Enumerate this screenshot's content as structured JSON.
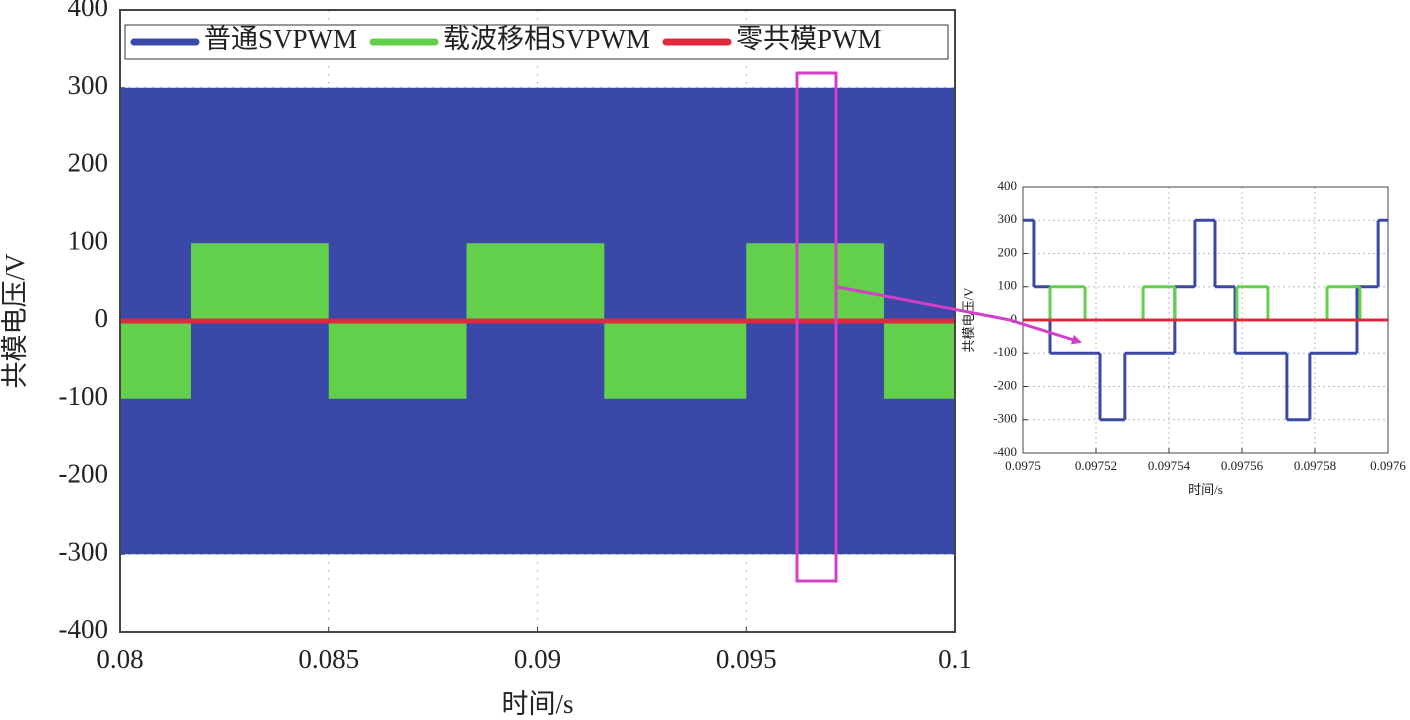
{
  "chart_data": [
    {
      "type": "line",
      "x_label": "时间/s",
      "y_label": "共模电压/V",
      "xlim": [
        0.08,
        0.1
      ],
      "xticks": [
        0.08,
        0.085,
        0.09,
        0.095,
        0.1
      ],
      "ylim": [
        -400,
        400
      ],
      "yticks": [
        -400,
        -300,
        -200,
        -100,
        0,
        100,
        200,
        300,
        400
      ],
      "grid": true,
      "legend": "top",
      "series": [
        {
          "name": "普通SVPWM",
          "color": "#3a48a8",
          "kind": "band",
          "x": [
            0.08,
            0.1
          ],
          "values": [
            300,
            300
          ],
          "lower": [
            -300,
            -300
          ]
        },
        {
          "name": "载波移相SVPWM",
          "color": "#62d04a",
          "kind": "step-bar",
          "x": [
            0.08,
            0.0817,
            0.085,
            0.0883,
            0.0916,
            0.095,
            0.0983
          ],
          "values": [
            -100,
            100,
            -100,
            100,
            -100,
            100,
            -100
          ]
        },
        {
          "name": "零共模PWM",
          "color": "#e0283e",
          "kind": "line",
          "x": [
            0.08,
            0.1
          ],
          "values": [
            0,
            0
          ]
        }
      ]
    },
    {
      "type": "line",
      "x_label": "时间/s",
      "y_label": "共模电压/V",
      "xlim": [
        0.0975,
        0.0976
      ],
      "xticks": [
        0.0975,
        0.09752,
        0.09754,
        0.09756,
        0.09758,
        0.0976
      ],
      "ylim": [
        -400,
        400
      ],
      "yticks": [
        -400,
        -300,
        -200,
        -100,
        0,
        100,
        200,
        300,
        400
      ],
      "grid": true,
      "series": [
        {
          "color": "#3a48a8",
          "kind": "step",
          "x": [
            0.0975,
            0.097503,
            0.0975074,
            0.0975211,
            0.0975279,
            0.0975416,
            0.0975471,
            0.0975526,
            0.0975581,
            0.0975723,
            0.0975786,
            0.0975915,
            0.0975973
          ],
          "values": [
            300,
            100,
            -100,
            -300,
            -100,
            100,
            300,
            100,
            -100,
            -300,
            -100,
            100,
            300
          ]
        },
        {
          "color": "#62d04a",
          "kind": "step",
          "x": [
            0.0975,
            0.0975074,
            0.097517,
            0.0975329,
            0.0975416,
            0.0975586,
            0.0975671,
            0.0975833,
            0.0975923
          ],
          "values": [
            0,
            100,
            0,
            100,
            0,
            100,
            0,
            100,
            0
          ]
        },
        {
          "color": "#e0283e",
          "kind": "line",
          "x": [
            0.0975,
            0.0976
          ],
          "values": [
            0,
            0
          ]
        }
      ]
    }
  ]
}
